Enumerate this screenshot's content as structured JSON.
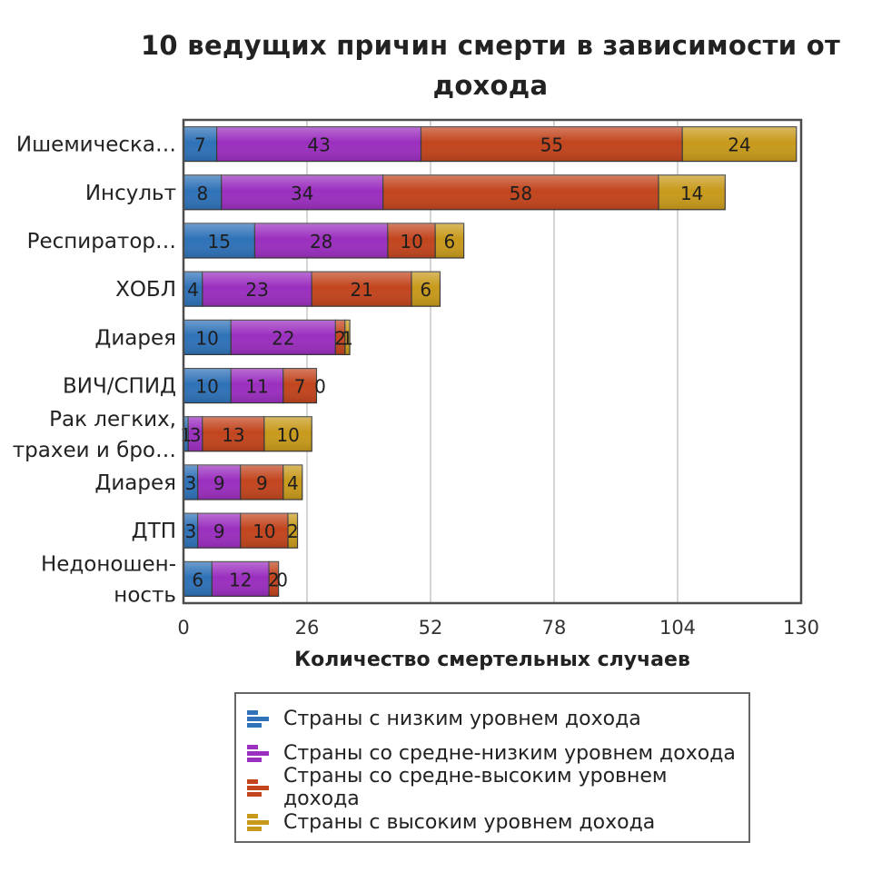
{
  "chart_data": {
    "type": "bar",
    "orientation": "horizontal",
    "stacked": true,
    "title": "10 ведущих причин смерти в зависимости от дохода",
    "xlabel": "Количество смертельных случаев",
    "ylabel": "",
    "xlim": [
      0,
      130
    ],
    "x_ticks": [
      "0",
      "26",
      "52",
      "78",
      "104",
      "130"
    ],
    "grid": true,
    "legend_position": "bottom",
    "categories": [
      [
        "Ишемическа…"
      ],
      [
        "Инсульт"
      ],
      [
        "Респиратор…"
      ],
      [
        "ХОБЛ"
      ],
      [
        "Диарея"
      ],
      [
        "ВИЧ/СПИД"
      ],
      [
        "Рак легких,",
        "трахеи и бро…"
      ],
      [
        "Диарея"
      ],
      [
        "ДТП"
      ],
      [
        "Недоношен-",
        "ность"
      ]
    ],
    "series": [
      {
        "name": "Страны с низким уровнем дохода",
        "color": "#2f72b8",
        "values": [
          7,
          8,
          15,
          4,
          10,
          10,
          1,
          3,
          3,
          6
        ]
      },
      {
        "name": "Страны со средне-низким уровнем дохода",
        "color": "#9b2fbf",
        "values": [
          43,
          34,
          28,
          23,
          22,
          11,
          3,
          9,
          9,
          12
        ]
      },
      {
        "name": "Страны со средне-высоким уровнем дохода",
        "color": "#c2451e",
        "values": [
          55,
          58,
          10,
          21,
          2,
          7,
          13,
          9,
          10,
          2
        ]
      },
      {
        "name": "Страны с высоким уровнем дохода",
        "color": "#c89a1c",
        "values": [
          24,
          14,
          6,
          6,
          1,
          0,
          10,
          4,
          2,
          0
        ]
      }
    ]
  }
}
